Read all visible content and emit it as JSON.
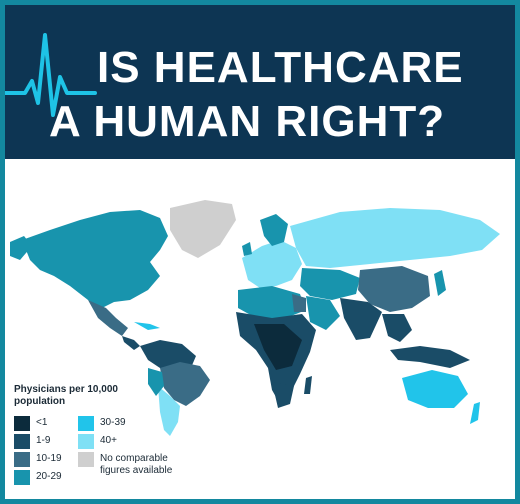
{
  "header": {
    "title_line1": "IS HEALTHCARE",
    "title_line2": "A HUMAN RIGHT?",
    "bg_color": "#0d3553",
    "border_color": "#13889f"
  },
  "map": {
    "type": "choropleth world map",
    "measure": "Physicians per 10,000 population"
  },
  "legend": {
    "title": "Physicians per 10,000 population",
    "items": [
      {
        "label": "<1",
        "color": "#0c2b3c"
      },
      {
        "label": "1-9",
        "color": "#1a4c67"
      },
      {
        "label": "10-19",
        "color": "#3a6c86"
      },
      {
        "label": "20-29",
        "color": "#1894ad"
      },
      {
        "label": "30-39",
        "color": "#21c4ea"
      },
      {
        "label": "40+",
        "color": "#7fe0f5"
      },
      {
        "label": "No comparable figures available",
        "color": "#cfcfcf"
      }
    ]
  }
}
